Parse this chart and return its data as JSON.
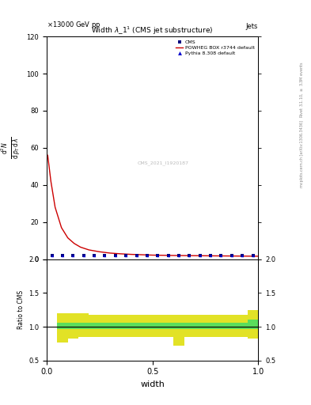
{
  "title": "Width $\\lambda\\_1^1$ (CMS jet substructure)",
  "header_left": "\\times13000 GeV pp",
  "header_right": "Jets",
  "xlabel": "width",
  "watermark": "CMS_2021_I1920187",
  "ylim_main": [
    0,
    120
  ],
  "ylim_ratio": [
    0.5,
    2.0
  ],
  "xlim": [
    0,
    1
  ],
  "cms_x": [
    0.025,
    0.075,
    0.125,
    0.175,
    0.225,
    0.275,
    0.325,
    0.375,
    0.425,
    0.475,
    0.525,
    0.575,
    0.625,
    0.675,
    0.725,
    0.775,
    0.825,
    0.875,
    0.925,
    0.975
  ],
  "cms_y": [
    2.0,
    2.0,
    2.0,
    2.0,
    2.0,
    2.0,
    2.0,
    2.0,
    2.0,
    2.0,
    2.0,
    2.0,
    2.0,
    2.0,
    2.0,
    2.0,
    2.0,
    2.0,
    2.0,
    2.0
  ],
  "powheg_x": [
    0.005,
    0.02,
    0.04,
    0.07,
    0.1,
    0.13,
    0.16,
    0.2,
    0.25,
    0.3,
    0.35,
    0.4,
    0.45,
    0.5,
    0.55,
    0.6,
    0.65,
    0.7,
    0.75,
    0.8,
    0.85,
    0.9,
    0.95,
    1.0
  ],
  "powheg_y": [
    56.0,
    42.0,
    28.0,
    17.0,
    11.5,
    8.5,
    6.5,
    5.0,
    4.0,
    3.3,
    2.9,
    2.6,
    2.4,
    2.2,
    2.1,
    2.0,
    1.95,
    1.9,
    1.85,
    1.8,
    1.75,
    1.7,
    1.65,
    1.6
  ],
  "pythia_x": [
    0.025,
    0.075,
    0.125,
    0.175,
    0.225,
    0.275,
    0.325,
    0.375,
    0.425,
    0.475,
    0.525,
    0.575,
    0.625,
    0.675,
    0.725,
    0.775,
    0.825,
    0.875,
    0.925,
    0.975
  ],
  "pythia_y": [
    2.0,
    2.0,
    2.0,
    2.0,
    2.0,
    2.0,
    2.0,
    2.0,
    2.0,
    2.0,
    2.0,
    2.0,
    2.0,
    2.0,
    2.0,
    2.0,
    2.0,
    2.0,
    2.0,
    2.0
  ],
  "ratio_x_edges": [
    0.0,
    0.05,
    0.1,
    0.15,
    0.2,
    0.25,
    0.3,
    0.35,
    0.4,
    0.45,
    0.5,
    0.55,
    0.6,
    0.65,
    0.7,
    0.75,
    0.8,
    0.85,
    0.9,
    0.95,
    1.0
  ],
  "green_band_lo": [
    1.0,
    0.97,
    0.97,
    0.97,
    0.97,
    0.97,
    0.97,
    0.97,
    0.97,
    0.97,
    0.97,
    0.97,
    0.97,
    0.97,
    0.97,
    0.97,
    0.97,
    0.97,
    0.97,
    0.97
  ],
  "green_band_hi": [
    1.0,
    1.06,
    1.06,
    1.06,
    1.06,
    1.06,
    1.06,
    1.06,
    1.06,
    1.06,
    1.06,
    1.06,
    1.06,
    1.06,
    1.06,
    1.06,
    1.06,
    1.06,
    1.06,
    1.1
  ],
  "yellow_band_lo": [
    1.0,
    0.77,
    0.82,
    0.85,
    0.85,
    0.85,
    0.85,
    0.85,
    0.85,
    0.85,
    0.85,
    0.85,
    0.72,
    0.85,
    0.85,
    0.85,
    0.85,
    0.85,
    0.85,
    0.82
  ],
  "yellow_band_hi": [
    1.0,
    1.2,
    1.2,
    1.2,
    1.18,
    1.18,
    1.18,
    1.18,
    1.18,
    1.18,
    1.18,
    1.18,
    1.18,
    1.18,
    1.18,
    1.18,
    1.18,
    1.18,
    1.18,
    1.25
  ],
  "color_cms": "#000080",
  "color_powheg": "#cc0000",
  "color_pythia": "#0000cc",
  "color_green_band": "#44dd66",
  "color_yellow_band": "#dddd00",
  "legend_entries": [
    "CMS",
    "POWHEG BOX r3744 default",
    "Pythia 8.308 default"
  ],
  "yticks_main": [
    0,
    20,
    40,
    60,
    80,
    100,
    120
  ],
  "yticks_ratio": [
    0.5,
    1.0,
    1.5,
    2.0
  ],
  "xticks": [
    0,
    0.5,
    1.0
  ]
}
